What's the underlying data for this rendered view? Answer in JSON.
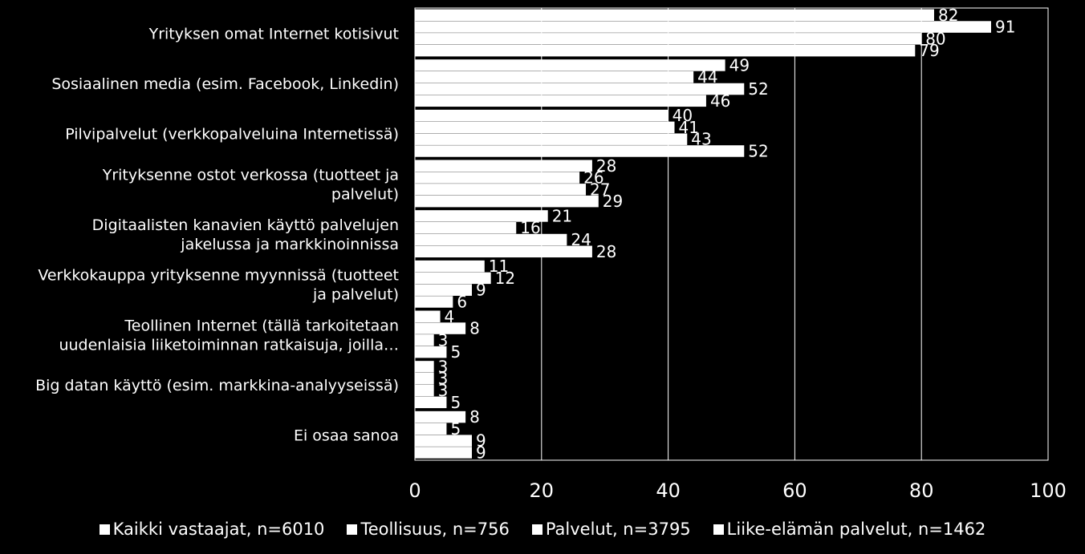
{
  "chart_data": {
    "type": "bar",
    "orientation": "horizontal",
    "categories": [
      [
        "Yrityksen omat Internet kotisivut"
      ],
      [
        "Sosiaalinen media (esim. Facebook, Linkedin)"
      ],
      [
        "Pilvipalvelut  (verkkopalveluina Internetissä)"
      ],
      [
        "Yrityksenne ostot verkossa (tuotteet ja",
        "palvelut)"
      ],
      [
        "Digitaalisten kanavien käyttö palvelujen",
        "jakelussa ja markkinoinnissa"
      ],
      [
        "Verkkokauppa yrityksenne myynnissä (tuotteet",
        "ja palvelut)"
      ],
      [
        "Teollinen Internet (tällä tarkoitetaan",
        "uudenlaisia liiketoiminnan ratkaisuja, joilla…"
      ],
      [
        "Big datan käyttö (esim. markkina-analyyseissä)"
      ],
      [
        "Ei osaa sanoa"
      ]
    ],
    "series": [
      {
        "name": "Kaikki vastaajat, n=6010",
        "values": [
          82,
          49,
          40,
          28,
          21,
          11,
          4,
          3,
          8
        ]
      },
      {
        "name": "Teollisuus, n=756",
        "values": [
          91,
          44,
          41,
          26,
          16,
          12,
          8,
          3,
          5
        ]
      },
      {
        "name": "Palvelut, n=3795",
        "values": [
          80,
          52,
          43,
          27,
          24,
          9,
          3,
          3,
          9
        ]
      },
      {
        "name": "Liike-elämän palvelut, n=1462",
        "values": [
          79,
          46,
          52,
          29,
          28,
          6,
          5,
          5,
          9
        ]
      }
    ],
    "xlim": [
      0,
      100
    ],
    "xticks": [
      0,
      20,
      40,
      60,
      80,
      100
    ],
    "grid": true,
    "legend": "bottom",
    "colors": {
      "background": "#000000",
      "bar": "#ffffff",
      "text": "#ffffff",
      "grid": "#ffffff"
    }
  }
}
